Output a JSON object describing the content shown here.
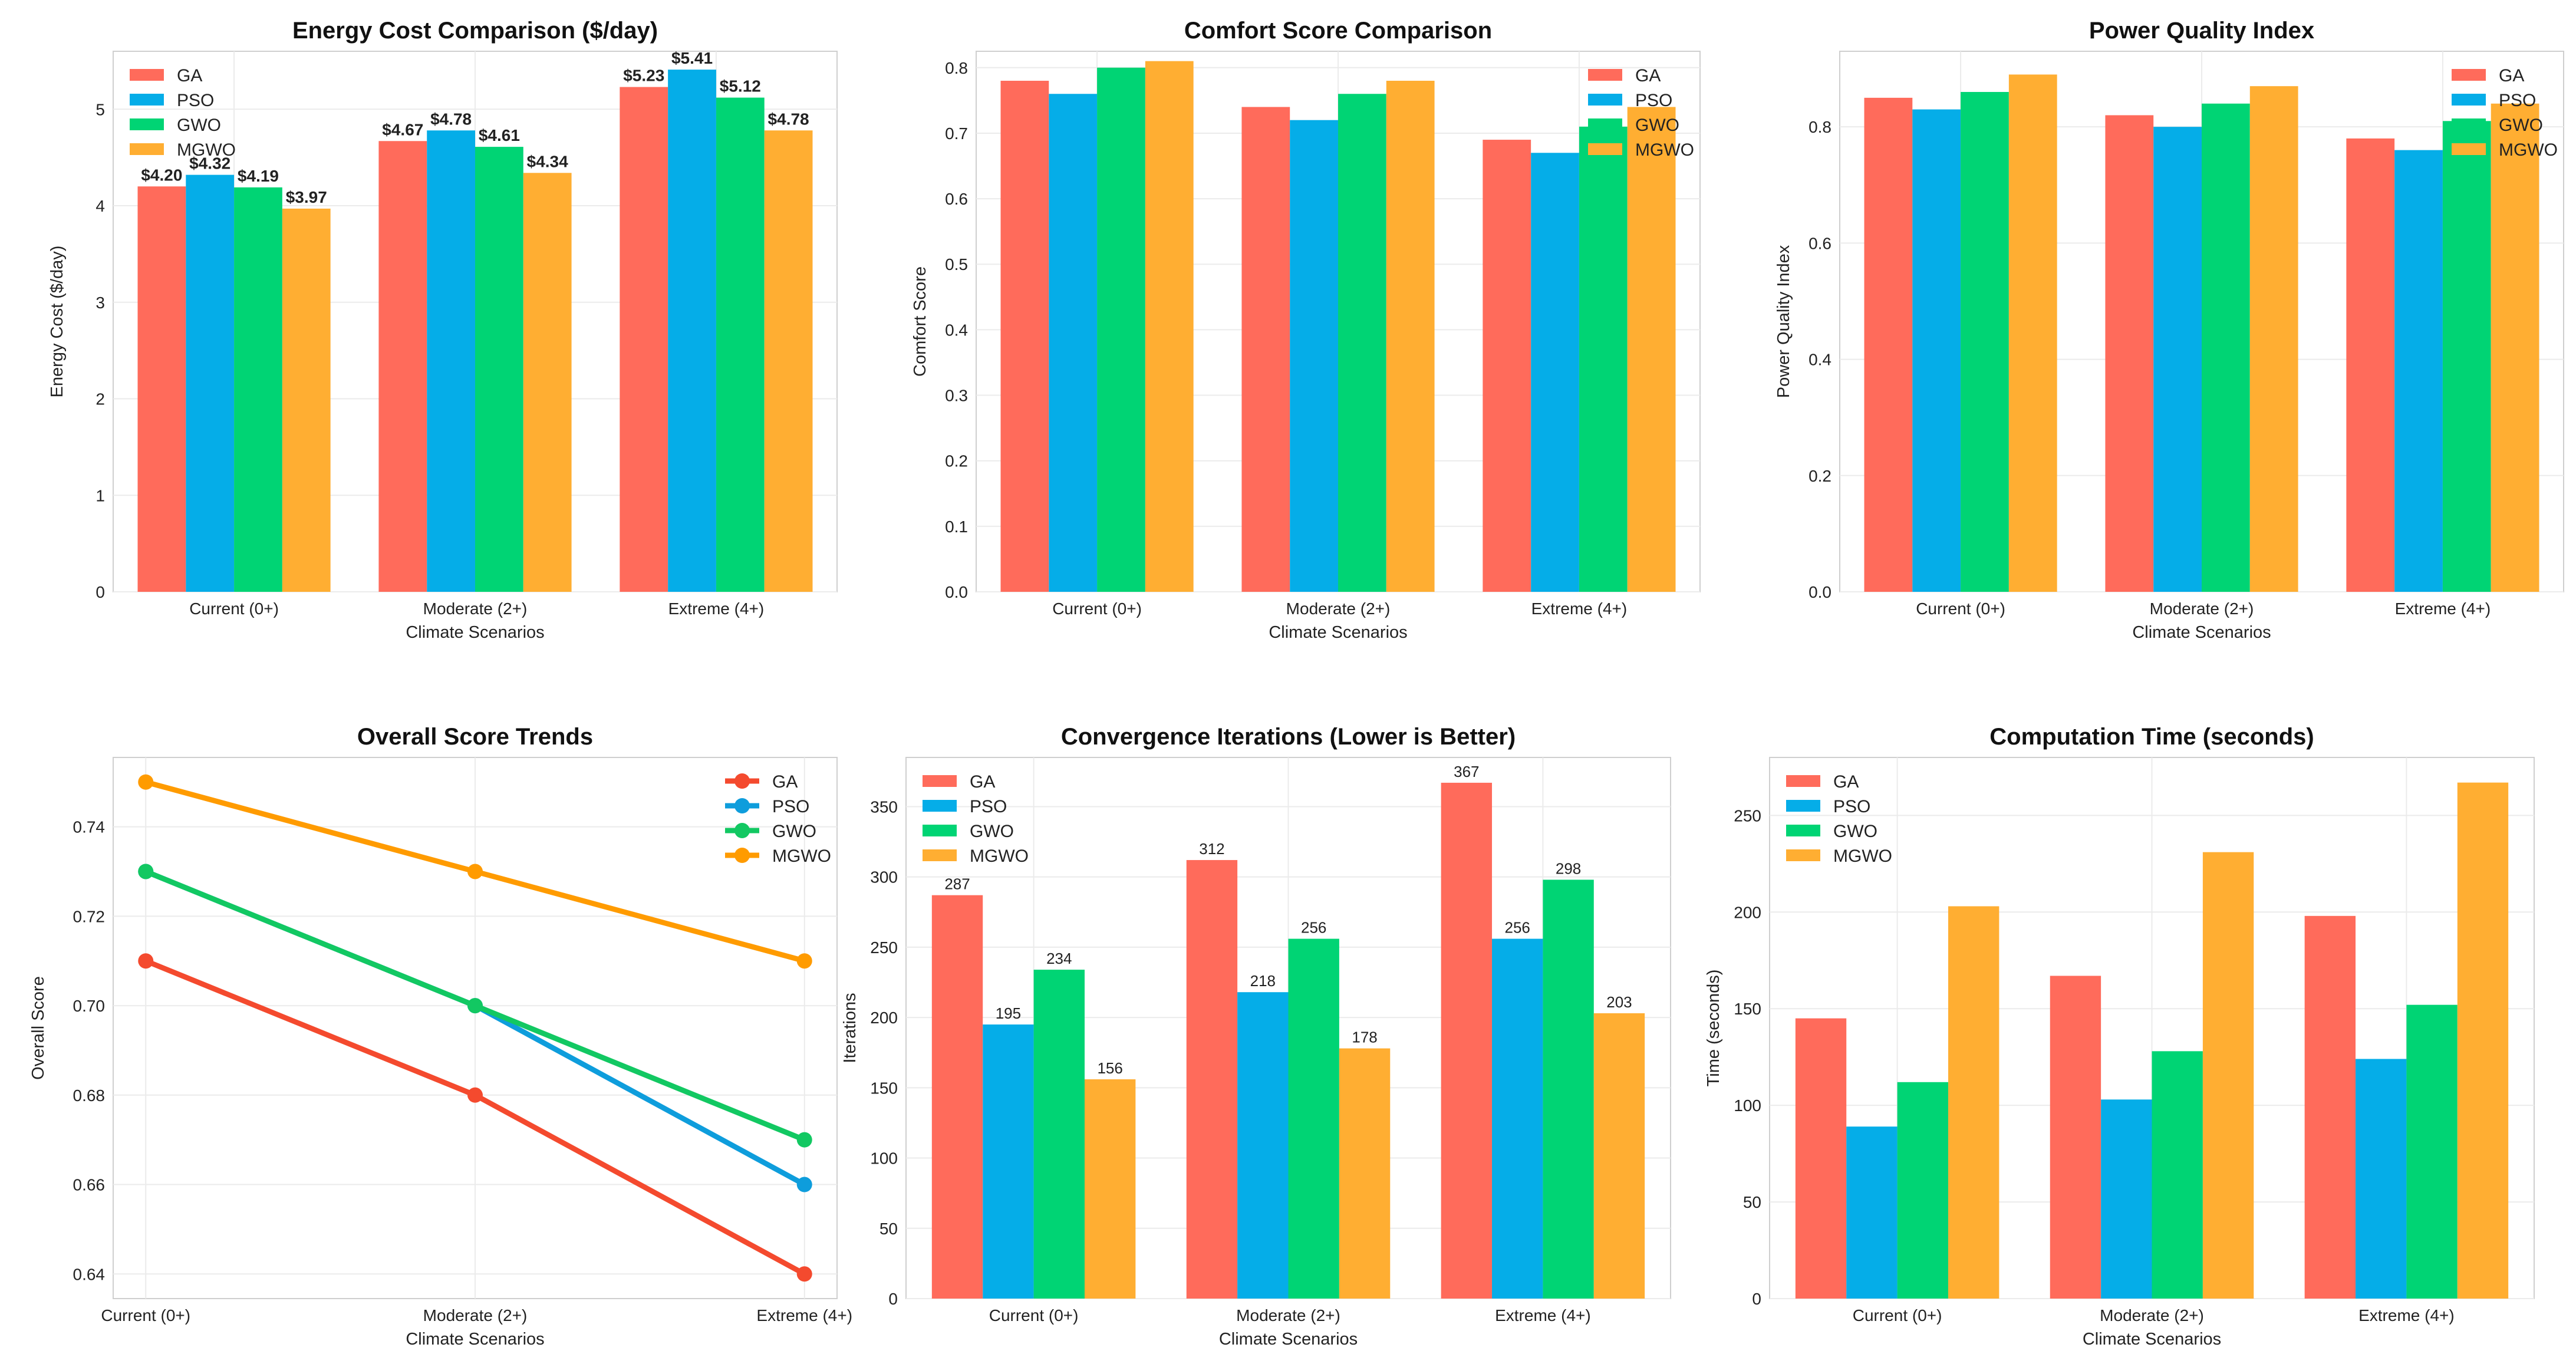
{
  "colors": {
    "GA": "#FF6B5B",
    "PSO": "#05ADE8",
    "GWO": "#00D474",
    "MGWO": "#FFAE32",
    "GA_line": "#F44A2E",
    "PSO_line": "#0E9DDC",
    "GWO_line": "#12C862",
    "MGWO_line": "#FF9B00"
  },
  "chart_data": [
    {
      "type": "bar",
      "title": "Energy Cost Comparison ($/day)",
      "xlabel": "Climate Scenarios",
      "ylabel": "Energy Cost ($/day)",
      "categories": [
        "Current (0+)",
        "Moderate (2+)",
        "Extreme (4+)"
      ],
      "ylim": [
        0,
        5.6
      ],
      "yticks": [
        0,
        1,
        2,
        3,
        4,
        5
      ],
      "ytick_labels": [
        "0",
        "1",
        "2",
        "3",
        "4",
        "5"
      ],
      "legend": "top-left",
      "series": [
        {
          "name": "GA",
          "values": [
            4.2,
            4.67,
            5.23
          ],
          "labels": [
            "$4.20",
            "$4.67",
            "$5.23"
          ]
        },
        {
          "name": "PSO",
          "values": [
            4.32,
            4.78,
            5.41
          ],
          "labels": [
            "$4.32",
            "$4.78",
            "$5.41"
          ]
        },
        {
          "name": "GWO",
          "values": [
            4.19,
            4.61,
            5.12
          ],
          "labels": [
            "$4.19",
            "$4.61",
            "$5.12"
          ]
        },
        {
          "name": "MGWO",
          "values": [
            3.97,
            4.34,
            4.78
          ],
          "labels": [
            "$3.97",
            "$4.34",
            "$4.78"
          ]
        }
      ]
    },
    {
      "type": "bar",
      "title": "Comfort Score Comparison",
      "xlabel": "Climate Scenarios",
      "ylabel": "Comfort Score",
      "categories": [
        "Current (0+)",
        "Moderate (2+)",
        "Extreme (4+)"
      ],
      "ylim": [
        0,
        0.825
      ],
      "yticks": [
        0,
        0.1,
        0.2,
        0.3,
        0.4,
        0.5,
        0.6,
        0.7,
        0.8
      ],
      "ytick_labels": [
        "0.0",
        "0.1",
        "0.2",
        "0.3",
        "0.4",
        "0.5",
        "0.6",
        "0.7",
        "0.8"
      ],
      "legend": "top-right",
      "series": [
        {
          "name": "GA",
          "values": [
            0.78,
            0.74,
            0.69
          ]
        },
        {
          "name": "PSO",
          "values": [
            0.76,
            0.72,
            0.67
          ]
        },
        {
          "name": "GWO",
          "values": [
            0.8,
            0.76,
            0.71
          ]
        },
        {
          "name": "MGWO",
          "values": [
            0.81,
            0.78,
            0.74
          ]
        }
      ]
    },
    {
      "type": "bar",
      "title": "Power Quality Index",
      "xlabel": "Climate Scenarios",
      "ylabel": "Power Quality Index",
      "categories": [
        "Current (0+)",
        "Moderate (2+)",
        "Extreme (4+)"
      ],
      "ylim": [
        0,
        0.93
      ],
      "yticks": [
        0,
        0.2,
        0.4,
        0.6,
        0.8
      ],
      "ytick_labels": [
        "0.0",
        "0.2",
        "0.4",
        "0.6",
        "0.8"
      ],
      "legend": "top-right",
      "series": [
        {
          "name": "GA",
          "values": [
            0.85,
            0.82,
            0.78
          ]
        },
        {
          "name": "PSO",
          "values": [
            0.83,
            0.8,
            0.76
          ]
        },
        {
          "name": "GWO",
          "values": [
            0.86,
            0.84,
            0.81
          ]
        },
        {
          "name": "MGWO",
          "values": [
            0.89,
            0.87,
            0.84
          ]
        }
      ]
    },
    {
      "type": "line",
      "title": "Overall Score Trends",
      "xlabel": "Climate Scenarios",
      "ylabel": "Overall Score",
      "categories": [
        "Current (0+)",
        "Moderate (2+)",
        "Extreme (4+)"
      ],
      "ylim": [
        0.6345,
        0.7555
      ],
      "yticks": [
        0.64,
        0.66,
        0.68,
        0.7,
        0.72,
        0.74
      ],
      "ytick_labels": [
        "0.64",
        "0.66",
        "0.68",
        "0.70",
        "0.72",
        "0.74"
      ],
      "legend": "top-right",
      "series": [
        {
          "name": "GA",
          "values": [
            0.71,
            0.68,
            0.64
          ]
        },
        {
          "name": "PSO",
          "values": [
            0.73,
            0.7,
            0.66
          ]
        },
        {
          "name": "GWO",
          "values": [
            0.73,
            0.7,
            0.67
          ]
        },
        {
          "name": "MGWO",
          "values": [
            0.75,
            0.73,
            0.71
          ]
        }
      ]
    },
    {
      "type": "bar",
      "title": "Convergence Iterations (Lower is Better)",
      "xlabel": "Climate Scenarios",
      "ylabel": "Iterations",
      "categories": [
        "Current (0+)",
        "Moderate (2+)",
        "Extreme (4+)"
      ],
      "ylim": [
        0,
        385
      ],
      "yticks": [
        0,
        50,
        100,
        150,
        200,
        250,
        300,
        350
      ],
      "ytick_labels": [
        "0",
        "50",
        "100",
        "150",
        "200",
        "250",
        "300",
        "350"
      ],
      "legend": "top-left",
      "series": [
        {
          "name": "GA",
          "values": [
            287,
            312,
            367
          ],
          "labels": [
            "287",
            "312",
            "367"
          ]
        },
        {
          "name": "PSO",
          "values": [
            195,
            218,
            256
          ],
          "labels": [
            "195",
            "218",
            "256"
          ]
        },
        {
          "name": "GWO",
          "values": [
            234,
            256,
            298
          ],
          "labels": [
            "234",
            "256",
            "298"
          ]
        },
        {
          "name": "MGWO",
          "values": [
            156,
            178,
            203
          ],
          "labels": [
            "156",
            "178",
            "203"
          ]
        }
      ]
    },
    {
      "type": "bar",
      "title": "Computation Time (seconds)",
      "xlabel": "Climate Scenarios",
      "ylabel": "Time (seconds)",
      "categories": [
        "Current (0+)",
        "Moderate (2+)",
        "Extreme (4+)"
      ],
      "ylim": [
        0,
        280
      ],
      "yticks": [
        0,
        50,
        100,
        150,
        200,
        250
      ],
      "ytick_labels": [
        "0",
        "50",
        "100",
        "150",
        "200",
        "250"
      ],
      "legend": "top-left",
      "series": [
        {
          "name": "GA",
          "values": [
            145,
            167,
            198
          ]
        },
        {
          "name": "PSO",
          "values": [
            89,
            103,
            124
          ]
        },
        {
          "name": "GWO",
          "values": [
            112,
            128,
            152
          ]
        },
        {
          "name": "MGWO",
          "values": [
            203,
            231,
            267
          ]
        }
      ]
    }
  ]
}
